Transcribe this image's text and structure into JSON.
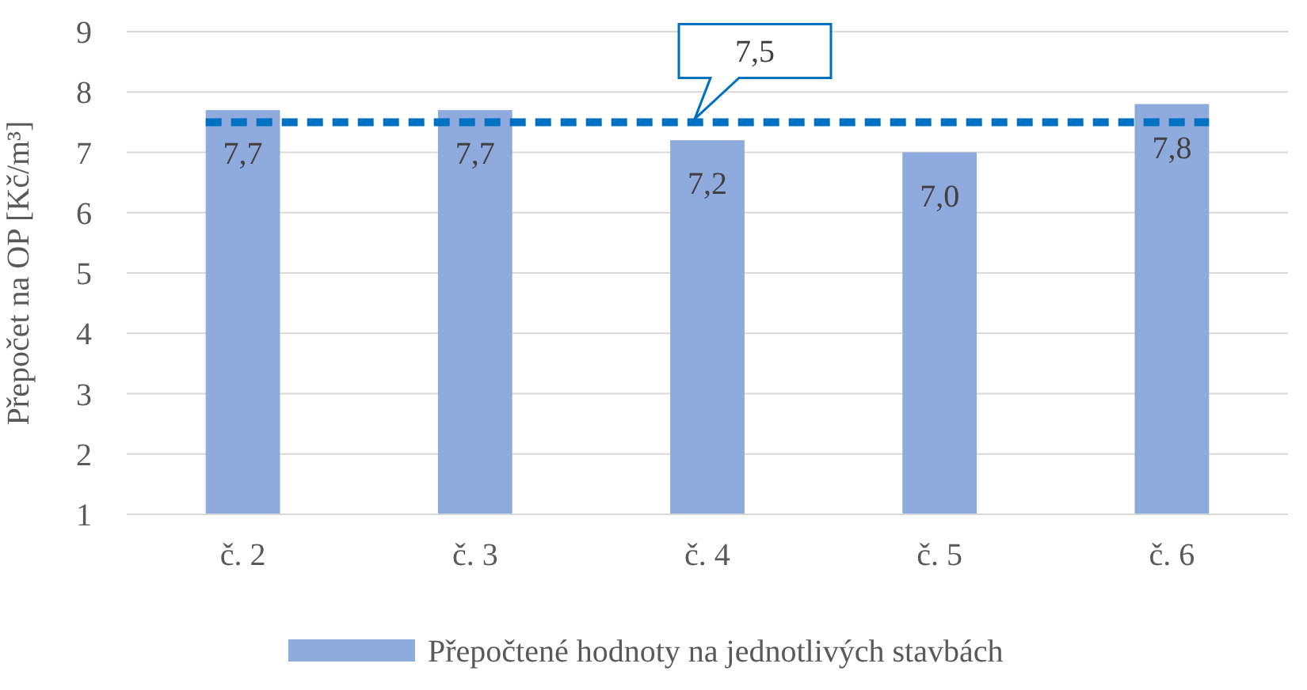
{
  "chart_data": {
    "type": "bar",
    "ylabel": "Přepočet na OP [Kč/m³]",
    "categories": [
      "č. 2",
      "č. 3",
      "č. 4",
      "č. 5",
      "č. 6"
    ],
    "series": [
      {
        "name": "Přepočtené hodnoty na jednotlivých stavbách",
        "color": "#8faadc",
        "values": [
          7.7,
          7.7,
          7.2,
          7.0,
          7.8
        ],
        "value_labels": [
          "7,7",
          "7,7",
          "7,2",
          "7,0",
          "7,8"
        ]
      }
    ],
    "ylim": [
      1,
      9
    ],
    "yticks": [
      1,
      2,
      3,
      4,
      5,
      6,
      7,
      8,
      9
    ],
    "grid": "y",
    "legend": "bottom",
    "ref_lines": [
      {
        "axis": "y",
        "value": 7.5,
        "label": "7,5",
        "color": "#0070c0",
        "line_style": "dashed"
      }
    ]
  }
}
